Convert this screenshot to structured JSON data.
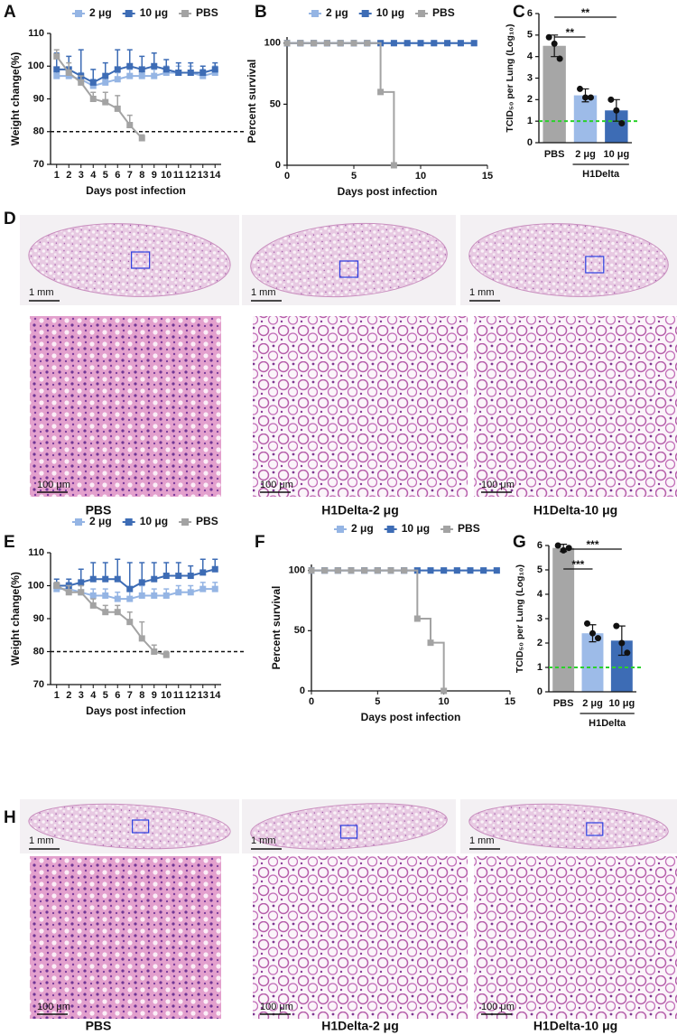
{
  "chart_data": [
    {
      "type": "line",
      "panel": "A",
      "x_label": "Days post infection",
      "y_label": "Weight change(%)",
      "categories": [
        "1",
        "2",
        "3",
        "4",
        "5",
        "6",
        "7",
        "8",
        "9",
        "10",
        "11",
        "12",
        "13",
        "14"
      ],
      "ylim": [
        70,
        110
      ],
      "yticks": [
        70,
        80,
        90,
        100,
        110
      ],
      "reference_line": 80,
      "series": [
        {
          "name": "2 μg",
          "color": "#95b5e4",
          "values": [
            97,
            97,
            96,
            94,
            95,
            96,
            97,
            97,
            97,
            98,
            98,
            98,
            97,
            98
          ],
          "errors": [
            2,
            2,
            2,
            2,
            2,
            2,
            2,
            2,
            2,
            2,
            2,
            2,
            2,
            2
          ]
        },
        {
          "name": "10 μg",
          "color": "#3d6cb5",
          "values": [
            99,
            99,
            97,
            95,
            97,
            99,
            100,
            99,
            100,
            99,
            98,
            98,
            98,
            99
          ],
          "errors": [
            5,
            4,
            8,
            4,
            4,
            6,
            5,
            4,
            4,
            3,
            3,
            3,
            2,
            2
          ]
        },
        {
          "name": "PBS",
          "color": "#a3a3a3",
          "values": [
            103,
            98,
            95,
            90,
            89,
            87,
            82,
            78,
            null,
            null,
            null,
            null,
            null,
            null
          ],
          "errors": [
            2,
            3,
            2,
            2,
            3,
            4,
            3,
            1,
            null,
            null,
            null,
            null,
            null,
            null
          ]
        }
      ]
    },
    {
      "type": "step",
      "panel": "B",
      "x_label": "Days post infection",
      "y_label": "Percent survival",
      "xlim": [
        0,
        15
      ],
      "xticks": [
        0,
        5,
        10,
        15
      ],
      "ylim": [
        0,
        105
      ],
      "yticks": [
        0,
        50,
        100
      ],
      "series": [
        {
          "name": "2 μg",
          "color": "#95b5e4",
          "x": [
            0,
            1,
            2,
            3,
            4,
            5,
            6,
            7,
            8,
            9,
            10,
            11,
            12,
            13,
            14
          ],
          "values": [
            100,
            100,
            100,
            100,
            100,
            100,
            100,
            100,
            100,
            100,
            100,
            100,
            100,
            100,
            100
          ]
        },
        {
          "name": "10 μg",
          "color": "#3d6cb5",
          "x": [
            0,
            1,
            2,
            3,
            4,
            5,
            6,
            7,
            8,
            9,
            10,
            11,
            12,
            13,
            14
          ],
          "values": [
            100,
            100,
            100,
            100,
            100,
            100,
            100,
            100,
            100,
            100,
            100,
            100,
            100,
            100,
            100
          ]
        },
        {
          "name": "PBS",
          "color": "#a3a3a3",
          "x": [
            0,
            1,
            2,
            3,
            4,
            5,
            6,
            7,
            8
          ],
          "values": [
            100,
            100,
            100,
            100,
            100,
            100,
            100,
            60,
            0
          ]
        }
      ]
    },
    {
      "type": "bar",
      "panel": "C",
      "y_label": "TCID₅₀ per Lung (Log₁₀)",
      "categories": [
        "PBS",
        "2 μg",
        "10 μg"
      ],
      "group_label": "H1Delta",
      "values": [
        4.5,
        2.2,
        1.5
      ],
      "errors": [
        0.5,
        0.3,
        0.5
      ],
      "points": [
        [
          4.9,
          4.6,
          3.9
        ],
        [
          2.5,
          2.1,
          2.1
        ],
        [
          2.0,
          1.5,
          0.9
        ]
      ],
      "colors": [
        "#a6a6a6",
        "#9dbbe8",
        "#3d6cb5"
      ],
      "ylim": [
        0,
        6
      ],
      "yticks": [
        0,
        1,
        2,
        3,
        4,
        5,
        6
      ],
      "reference_line": 1,
      "reference_color": "#2bd12b",
      "significance": [
        "**",
        "**"
      ]
    },
    {
      "type": "line",
      "panel": "E",
      "x_label": "Days post infection",
      "y_label": "Weight change(%)",
      "categories": [
        "1",
        "2",
        "3",
        "4",
        "5",
        "6",
        "7",
        "8",
        "9",
        "10",
        "11",
        "12",
        "13",
        "14"
      ],
      "ylim": [
        70,
        110
      ],
      "yticks": [
        70,
        80,
        90,
        100,
        110
      ],
      "reference_line": 80,
      "series": [
        {
          "name": "2 μg",
          "color": "#95b5e4",
          "values": [
            99,
            99,
            98,
            97,
            97,
            96,
            96,
            97,
            97,
            97,
            98,
            98,
            99,
            99
          ],
          "errors": [
            2,
            2,
            2,
            2,
            2,
            2,
            3,
            3,
            2,
            2,
            2,
            2,
            2,
            2
          ]
        },
        {
          "name": "10 μg",
          "color": "#3d6cb5",
          "values": [
            100,
            100,
            101,
            102,
            102,
            102,
            99,
            101,
            102,
            103,
            103,
            103,
            104,
            105
          ],
          "errors": [
            2,
            2,
            4,
            5,
            5,
            6,
            8,
            6,
            5,
            4,
            4,
            3,
            4,
            3
          ]
        },
        {
          "name": "PBS",
          "color": "#a3a3a3",
          "values": [
            100,
            98,
            98,
            94,
            92,
            92,
            89,
            84,
            80,
            79,
            null,
            null,
            null,
            null
          ],
          "errors": [
            1,
            2,
            2,
            2,
            2,
            2,
            3,
            5,
            2,
            1,
            null,
            null,
            null,
            null
          ]
        }
      ]
    },
    {
      "type": "step",
      "panel": "F",
      "x_label": "Days post infection",
      "y_label": "Percent survival",
      "xlim": [
        0,
        15
      ],
      "xticks": [
        0,
        5,
        10,
        15
      ],
      "ylim": [
        0,
        105
      ],
      "yticks": [
        0,
        50,
        100
      ],
      "series": [
        {
          "name": "2 μg",
          "color": "#95b5e4",
          "x": [
            0,
            1,
            2,
            3,
            4,
            5,
            6,
            7,
            8,
            9,
            10,
            11,
            12,
            13,
            14
          ],
          "values": [
            100,
            100,
            100,
            100,
            100,
            100,
            100,
            100,
            100,
            100,
            100,
            100,
            100,
            100,
            100
          ]
        },
        {
          "name": "10 μg",
          "color": "#3d6cb5",
          "x": [
            0,
            1,
            2,
            3,
            4,
            5,
            6,
            7,
            8,
            9,
            10,
            11,
            12,
            13,
            14
          ],
          "values": [
            100,
            100,
            100,
            100,
            100,
            100,
            100,
            100,
            100,
            100,
            100,
            100,
            100,
            100,
            100
          ]
        },
        {
          "name": "PBS",
          "color": "#a3a3a3",
          "x": [
            0,
            1,
            2,
            3,
            4,
            5,
            6,
            7,
            8,
            9,
            10
          ],
          "values": [
            100,
            100,
            100,
            100,
            100,
            100,
            100,
            100,
            60,
            40,
            0
          ]
        }
      ]
    },
    {
      "type": "bar",
      "panel": "G",
      "y_label": "TCID₅₀ per Lung (Log₁₀)",
      "categories": [
        "PBS",
        "2 μg",
        "10 μg"
      ],
      "group_label": "H1Delta",
      "values": [
        5.9,
        2.4,
        2.1
      ],
      "errors": [
        0.15,
        0.35,
        0.6
      ],
      "points": [
        [
          6.0,
          5.8,
          5.9
        ],
        [
          2.8,
          2.4,
          2.2
        ],
        [
          2.7,
          2.0,
          1.6
        ]
      ],
      "colors": [
        "#a6a6a6",
        "#9dbbe8",
        "#3d6cb5"
      ],
      "ylim": [
        0,
        6
      ],
      "yticks": [
        0,
        1,
        2,
        3,
        4,
        5,
        6
      ],
      "reference_line": 1,
      "reference_color": "#2bd12b",
      "significance": [
        "***",
        "***"
      ]
    }
  ],
  "histology": [
    {
      "letter": "D",
      "sections": [
        {
          "scale": "1 mm",
          "zoom_scale": "100 μm",
          "caption": "PBS"
        },
        {
          "scale": "1 mm",
          "zoom_scale": "100 μm",
          "caption": "H1Delta-2 μg"
        },
        {
          "scale": "1 mm",
          "zoom_scale": "100 μm",
          "caption": "H1Delta-10 μg"
        }
      ]
    },
    {
      "letter": "H",
      "sections": [
        {
          "scale": "1 mm",
          "zoom_scale": "100 μm",
          "caption": "PBS"
        },
        {
          "scale": "1 mm",
          "zoom_scale": "100 μm",
          "caption": "H1Delta-2 μg"
        },
        {
          "scale": "1 mm",
          "zoom_scale": "100 μm",
          "caption": "H1Delta-10 μg"
        }
      ]
    }
  ]
}
